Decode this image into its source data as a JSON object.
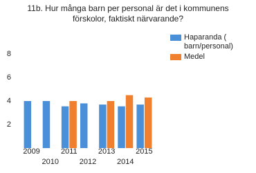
{
  "chart_data": {
    "type": "bar",
    "title": "11b. Hur många barn per personal är det i kommunens förskolor, faktiskt närvarande?",
    "categories": [
      "2009",
      "2010",
      "2011",
      "2012",
      "2013",
      "2014",
      "2015"
    ],
    "series": [
      {
        "name": "Haparanda ( barn/personal)",
        "color": "#4a90d9",
        "values": [
          4.0,
          4.0,
          3.55,
          3.8,
          3.7,
          3.55,
          3.7
        ]
      },
      {
        "name": "Medel",
        "color": "#f07f2e",
        "values": [
          null,
          null,
          4.0,
          null,
          4.0,
          4.5,
          4.3
        ]
      }
    ],
    "ylim": [
      0,
      10
    ],
    "yticks": [
      2,
      4,
      6,
      8
    ],
    "grid": false,
    "legend": "right"
  }
}
